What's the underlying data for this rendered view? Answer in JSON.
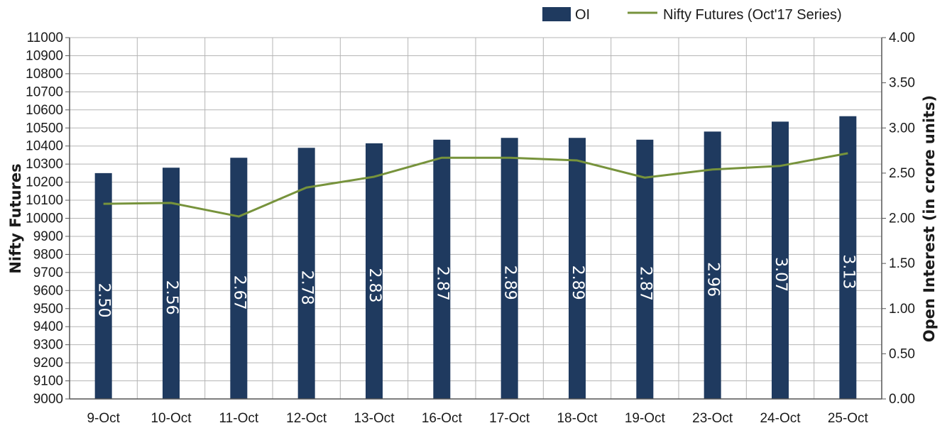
{
  "chart_data": {
    "type": "bar",
    "categories": [
      "9-Oct",
      "10-Oct",
      "11-Oct",
      "12-Oct",
      "13-Oct",
      "16-Oct",
      "17-Oct",
      "18-Oct",
      "19-Oct",
      "23-Oct",
      "24-Oct",
      "25-Oct"
    ],
    "series": [
      {
        "name": "OI",
        "chart": "bar",
        "axis": "right",
        "values": [
          2.5,
          2.56,
          2.67,
          2.78,
          2.83,
          2.87,
          2.89,
          2.89,
          2.87,
          2.96,
          3.07,
          3.13
        ],
        "labels": [
          "2.50",
          "2.56",
          "2.67",
          "2.78",
          "2.83",
          "2.87",
          "2.89",
          "2.89",
          "2.87",
          "2.96",
          "3.07",
          "3.13"
        ],
        "color": "#1f3a5f"
      },
      {
        "name": "Nifty Futures (Oct'17 Series)",
        "chart": "line",
        "axis": "left",
        "values": [
          10080,
          10085,
          10010,
          10170,
          10230,
          10335,
          10335,
          10320,
          10225,
          10270,
          10290,
          10360
        ],
        "color": "#77933c"
      }
    ],
    "y_left": {
      "label": "Nifty Futures",
      "range": [
        9000,
        11000
      ],
      "ticks": [
        "9000",
        "9100",
        "9200",
        "9300",
        "9400",
        "9500",
        "9600",
        "9700",
        "9800",
        "9900",
        "10000",
        "10100",
        "10200",
        "10300",
        "10400",
        "10500",
        "10600",
        "10700",
        "10800",
        "10900",
        "11000"
      ]
    },
    "y_right": {
      "label": "Open Interest (in crore units)",
      "range": [
        0,
        4
      ],
      "ticks": [
        "0.00",
        "0.50",
        "1.00",
        "1.50",
        "2.00",
        "2.50",
        "3.00",
        "3.50",
        "4.00"
      ]
    },
    "grid": true,
    "legend": "top"
  }
}
